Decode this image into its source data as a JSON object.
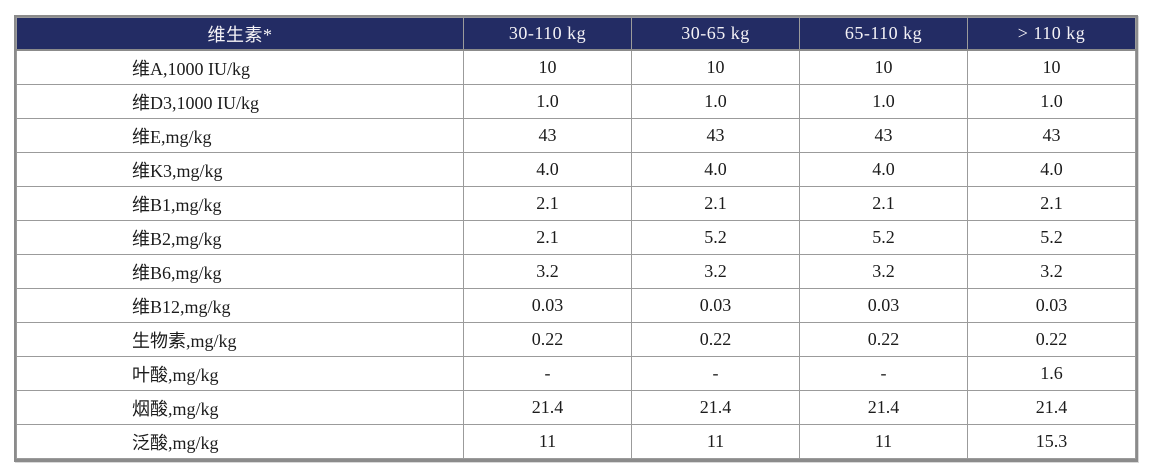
{
  "table": {
    "columns": [
      "维生素*",
      "30-110 kg",
      "30-65 kg",
      "65-110 kg",
      "> 110 kg"
    ],
    "rows": [
      {
        "label": "维A,1000 IU/kg",
        "values": [
          "10",
          "10",
          "10",
          "10"
        ]
      },
      {
        "label": "维D3,1000 IU/kg",
        "values": [
          "1.0",
          "1.0",
          "1.0",
          "1.0"
        ]
      },
      {
        "label": "维E,mg/kg",
        "values": [
          "43",
          "43",
          "43",
          "43"
        ]
      },
      {
        "label": "维K3,mg/kg",
        "values": [
          "4.0",
          "4.0",
          "4.0",
          "4.0"
        ]
      },
      {
        "label": "维B1,mg/kg",
        "values": [
          "2.1",
          "2.1",
          "2.1",
          "2.1"
        ]
      },
      {
        "label": "维B2,mg/kg",
        "values": [
          "2.1",
          "5.2",
          "5.2",
          "5.2"
        ]
      },
      {
        "label": "维B6,mg/kg",
        "values": [
          "3.2",
          "3.2",
          "3.2",
          "3.2"
        ]
      },
      {
        "label": "维B12,mg/kg",
        "values": [
          "0.03",
          "0.03",
          "0.03",
          "0.03"
        ]
      },
      {
        "label": "生物素,mg/kg",
        "values": [
          "0.22",
          "0.22",
          "0.22",
          "0.22"
        ]
      },
      {
        "label": "叶酸,mg/kg",
        "values": [
          "-",
          "-",
          "-",
          "1.6"
        ]
      },
      {
        "label": "烟酸,mg/kg",
        "values": [
          "21.4",
          "21.4",
          "21.4",
          "21.4"
        ]
      },
      {
        "label": "泛酸,mg/kg",
        "values": [
          "11",
          "11",
          "11",
          "15.3"
        ]
      }
    ],
    "theme": {
      "header_background": "#232c64",
      "header_text": "#f4f2f6",
      "grid_line": "#9b9b9b",
      "outer_frame": "#8b8b8b",
      "body_text": "#1c1c1c"
    }
  }
}
